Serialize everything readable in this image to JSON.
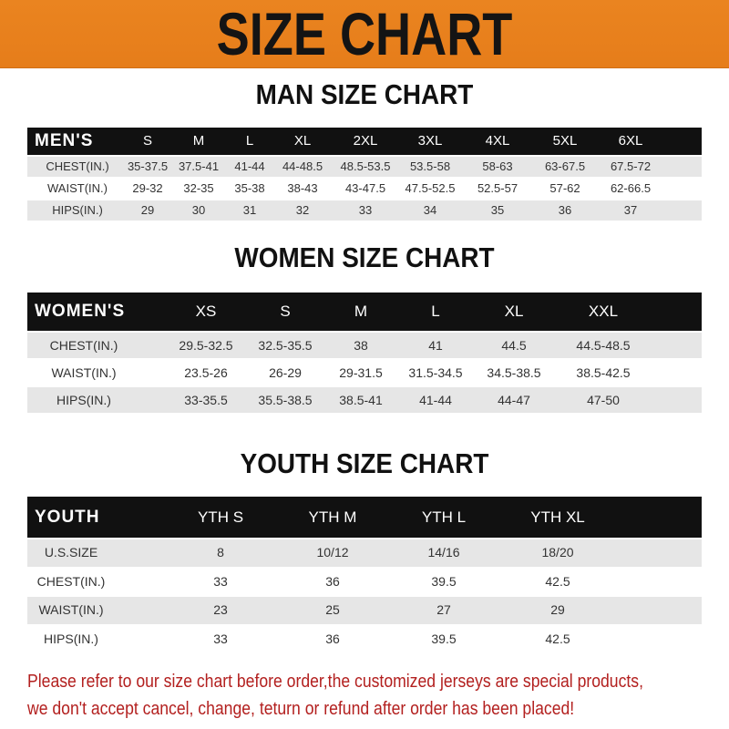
{
  "banner": {
    "title": "SIZE CHART",
    "color": "#e8811f"
  },
  "men": {
    "title": "MAN SIZE CHART",
    "header": "MEN'S",
    "sizes": [
      "S",
      "M",
      "L",
      "XL",
      "2XL",
      "3XL",
      "4XL",
      "5XL",
      "6XL"
    ],
    "rows": [
      {
        "label": "CHEST(IN.)",
        "values": [
          "35-37.5",
          "37.5-41",
          "41-44",
          "44-48.5",
          "48.5-53.5",
          "53.5-58",
          "58-63",
          "63-67.5",
          "67.5-72"
        ]
      },
      {
        "label": "WAIST(IN.)",
        "values": [
          "29-32",
          "32-35",
          "35-38",
          "38-43",
          "43-47.5",
          "47.5-52.5",
          "52.5-57",
          "57-62",
          "62-66.5"
        ]
      },
      {
        "label": "HIPS(IN.)",
        "values": [
          "29",
          "30",
          "31",
          "32",
          "33",
          "34",
          "35",
          "36",
          "37"
        ]
      }
    ]
  },
  "women": {
    "title": "WOMEN SIZE CHART",
    "header": "WOMEN'S",
    "sizes": [
      "XS",
      "S",
      "M",
      "L",
      "XL",
      "XXL"
    ],
    "rows": [
      {
        "label": "CHEST(IN.)",
        "values": [
          "29.5-32.5",
          "32.5-35.5",
          "38",
          "41",
          "44.5",
          "44.5-48.5"
        ]
      },
      {
        "label": "WAIST(IN.)",
        "values": [
          "23.5-26",
          "26-29",
          "29-31.5",
          "31.5-34.5",
          "34.5-38.5",
          "38.5-42.5"
        ]
      },
      {
        "label": "HIPS(IN.)",
        "values": [
          "33-35.5",
          "35.5-38.5",
          "38.5-41",
          "41-44",
          "44-47",
          "47-50"
        ]
      }
    ]
  },
  "youth": {
    "title": "YOUTH SIZE CHART",
    "header": "YOUTH",
    "sizes": [
      "YTH S",
      "YTH M",
      "YTH L",
      "YTH XL"
    ],
    "rows": [
      {
        "label": "U.S.SIZE",
        "values": [
          "8",
          "10/12",
          "14/16",
          "18/20"
        ]
      },
      {
        "label": "CHEST(IN.)",
        "values": [
          "33",
          "36",
          "39.5",
          "42.5"
        ]
      },
      {
        "label": "WAIST(IN.)",
        "values": [
          "23",
          "25",
          "27",
          "29"
        ]
      },
      {
        "label": "HIPS(IN.)",
        "values": [
          "33",
          "36",
          "39.5",
          "42.5"
        ]
      }
    ]
  },
  "notice": {
    "line1": "Please refer to our size chart before order,the customized jerseys are special products,",
    "line2": "we don't accept cancel, change, teturn or refund after order has been placed!",
    "color": "#b3201f"
  }
}
